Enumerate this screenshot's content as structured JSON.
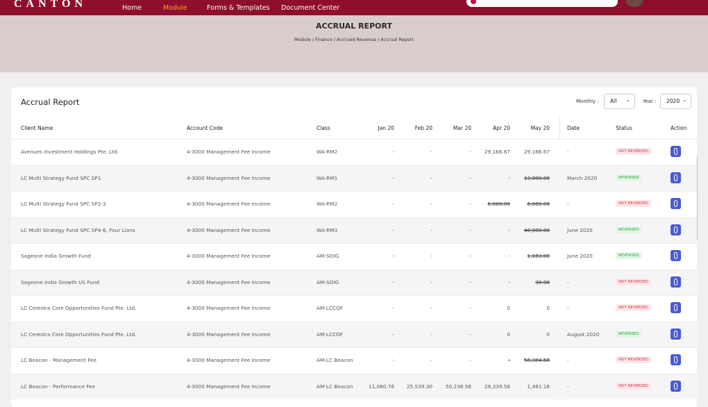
{
  "nav": {
    "brand": "CANTON",
    "links": [
      "Home",
      "Module",
      "Forms & Templates",
      "Document Center"
    ],
    "active": 1
  },
  "header": {
    "title": "ACCRUAL REPORT",
    "breadcrumb": "Module / Finance / Accrued Revenue / Accrual  Report"
  },
  "card": {
    "title": "Accrual  Report",
    "monthly_label": "Monthly :",
    "monthly_value": "All",
    "year_label": "Year :",
    "year_value": "2020"
  },
  "table": {
    "columns": [
      "Client Name",
      "Account Code",
      "Class",
      "Jan 20",
      "Feb 20",
      "Mar 20",
      "Apr 20",
      "May 20",
      "Date",
      "Status",
      "Action"
    ],
    "rows": [
      {
        "client": "Avenues Investment Holdings Pte. Ltd.",
        "account": "4-3000 Management Fee Income",
        "class": "WA-RM2",
        "months": [
          "-",
          "-",
          "-",
          "29,166.67",
          "29,166.67"
        ],
        "struck": [],
        "date": "-",
        "status": "NOT REVERSED",
        "reversed": false
      },
      {
        "client": "LC Multi Strategy Fund SPC SP1",
        "account": "4-3000 Management Fee Income",
        "class": "WA-RM1",
        "months": [
          "-",
          "-",
          "-",
          "-",
          "13,000.00"
        ],
        "struck": [
          4
        ],
        "date": "March 2020",
        "status": "REVERSED",
        "reversed": true
      },
      {
        "client": "LC Multi Strategy Fund SPC SP2-3",
        "account": "4-3000 Management Fee Income",
        "class": "WA-RM2",
        "months": [
          "-",
          "-",
          "-",
          "6,000.00",
          "6,000.00"
        ],
        "struck": [
          3,
          4
        ],
        "date": "-",
        "status": "NOT REVERSED",
        "reversed": false
      },
      {
        "client": "LC Multi Strategy Fund SPC SP4-6, Four Lions",
        "account": "4-3000 Management Fee Income",
        "class": "WA-RM3",
        "months": [
          "-",
          "-",
          "-",
          "-",
          "40,000.00"
        ],
        "struck": [
          4
        ],
        "date": "June 2020",
        "status": "REVERSED",
        "reversed": true
      },
      {
        "client": "Sageone India Growth Fund",
        "account": "4-3000 Management Fee Income",
        "class": "AM-SOIG",
        "months": [
          "-",
          "-",
          "-",
          "-",
          "1,183.80"
        ],
        "struck": [
          4
        ],
        "date": "June 2020",
        "status": "REVERSED",
        "reversed": true
      },
      {
        "client": "Sageone India Growth US Fund",
        "account": "4-3000 Management Fee Income",
        "class": "AM-SOIG",
        "months": [
          "-",
          "-",
          "-",
          "-",
          "30.98"
        ],
        "struck": [
          4
        ],
        "date": "-",
        "status": "NOT REVERSED",
        "reversed": false
      },
      {
        "client": "LC Cerestra Core Opportunities Fund Pte. Ltd.",
        "account": "4-3000 Management Fee Income",
        "class": "AM-LCCOF",
        "months": [
          "-",
          "-",
          "-",
          "0",
          "0"
        ],
        "struck": [],
        "date": "-",
        "status": "NOT REVERSED",
        "reversed": false
      },
      {
        "client": "LC Cerestra Core Opportunities Fund Pte. Ltd.",
        "account": "4-3000 Management Fee Income",
        "class": "AM-LCCOF",
        "months": [
          "-",
          "-",
          "-",
          "0",
          "0"
        ],
        "struck": [],
        "date": "August 2020",
        "status": "REVERSED",
        "reversed": true
      },
      {
        "client": "LC Beacon - Management Fee",
        "account": "4-3000 Management Fee Income",
        "class": "AM-LC Beacon",
        "months": [
          "-",
          "-",
          "-",
          "-",
          "56,384.68"
        ],
        "struck": [
          3,
          4
        ],
        "date": "-",
        "status": "NOT REVERSED",
        "reversed": false
      },
      {
        "client": "LC Beacon - Performance Fee",
        "account": "4-3000 Management Fee Income",
        "class": "AM-LC Beacon",
        "months": [
          "11,060.76",
          "25,539.30",
          "50,238.58",
          "29,339.56",
          "1,481.18"
        ],
        "struck": [],
        "date": "-",
        "status": "NOT REVERSED",
        "reversed": false
      }
    ]
  }
}
